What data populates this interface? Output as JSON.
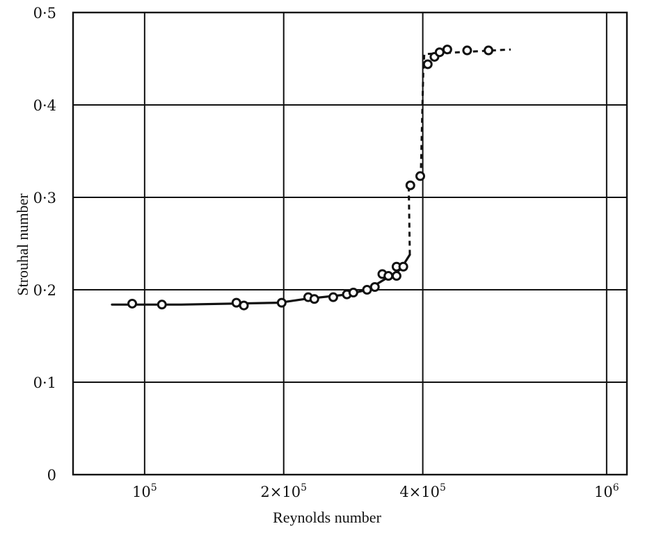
{
  "chart_data": {
    "type": "scatter",
    "title": "",
    "xlabel": "Reynolds number",
    "ylabel": "Strouhal number",
    "x_scale": "log",
    "xlim": [
      70000,
      1000000
    ],
    "ylim": [
      0,
      0.5
    ],
    "grid": true,
    "x_ticks": [
      {
        "value": 100000,
        "label_base": "10",
        "label_exp": "5"
      },
      {
        "value": 200000,
        "label_base": "2×10",
        "label_exp": "5"
      },
      {
        "value": 400000,
        "label_base": "4×10",
        "label_exp": "5"
      },
      {
        "value": 1000000,
        "label_base": "10",
        "label_exp": "6"
      }
    ],
    "y_ticks": [
      {
        "value": 0,
        "label": "0"
      },
      {
        "value": 0.1,
        "label": "0·1"
      },
      {
        "value": 0.2,
        "label": "0·2"
      },
      {
        "value": 0.3,
        "label": "0·3"
      },
      {
        "value": 0.4,
        "label": "0·4"
      },
      {
        "value": 0.5,
        "label": "0·5"
      }
    ],
    "points": [
      {
        "x": 94000,
        "y": 0.185
      },
      {
        "x": 109000,
        "y": 0.184
      },
      {
        "x": 158000,
        "y": 0.186
      },
      {
        "x": 164000,
        "y": 0.183
      },
      {
        "x": 198000,
        "y": 0.186
      },
      {
        "x": 226000,
        "y": 0.192
      },
      {
        "x": 233000,
        "y": 0.19
      },
      {
        "x": 256000,
        "y": 0.192
      },
      {
        "x": 274000,
        "y": 0.195
      },
      {
        "x": 283000,
        "y": 0.197
      },
      {
        "x": 303000,
        "y": 0.2
      },
      {
        "x": 315000,
        "y": 0.203
      },
      {
        "x": 327000,
        "y": 0.217
      },
      {
        "x": 337000,
        "y": 0.215
      },
      {
        "x": 351000,
        "y": 0.215
      },
      {
        "x": 351000,
        "y": 0.225
      },
      {
        "x": 363000,
        "y": 0.225
      },
      {
        "x": 376000,
        "y": 0.313
      },
      {
        "x": 395000,
        "y": 0.323
      },
      {
        "x": 410000,
        "y": 0.444
      },
      {
        "x": 424000,
        "y": 0.452
      },
      {
        "x": 435000,
        "y": 0.457
      },
      {
        "x": 452000,
        "y": 0.46
      },
      {
        "x": 499000,
        "y": 0.459
      },
      {
        "x": 555000,
        "y": 0.459
      }
    ],
    "solid_curve": [
      {
        "x": 85000,
        "y": 0.184
      },
      {
        "x": 120000,
        "y": 0.184
      },
      {
        "x": 196000,
        "y": 0.186
      },
      {
        "x": 222000,
        "y": 0.19
      },
      {
        "x": 276000,
        "y": 0.195
      },
      {
        "x": 303000,
        "y": 0.2
      },
      {
        "x": 320000,
        "y": 0.207
      },
      {
        "x": 340000,
        "y": 0.215
      },
      {
        "x": 358000,
        "y": 0.222
      },
      {
        "x": 375000,
        "y": 0.238
      }
    ],
    "dashed_curve_1": [
      {
        "x": 375000,
        "y": 0.238
      },
      {
        "x": 373000,
        "y": 0.31
      }
    ],
    "dashed_curve_2": [
      {
        "x": 396000,
        "y": 0.322
      },
      {
        "x": 401000,
        "y": 0.435
      },
      {
        "x": 403000,
        "y": 0.455
      },
      {
        "x": 620000,
        "y": 0.46
      }
    ]
  }
}
